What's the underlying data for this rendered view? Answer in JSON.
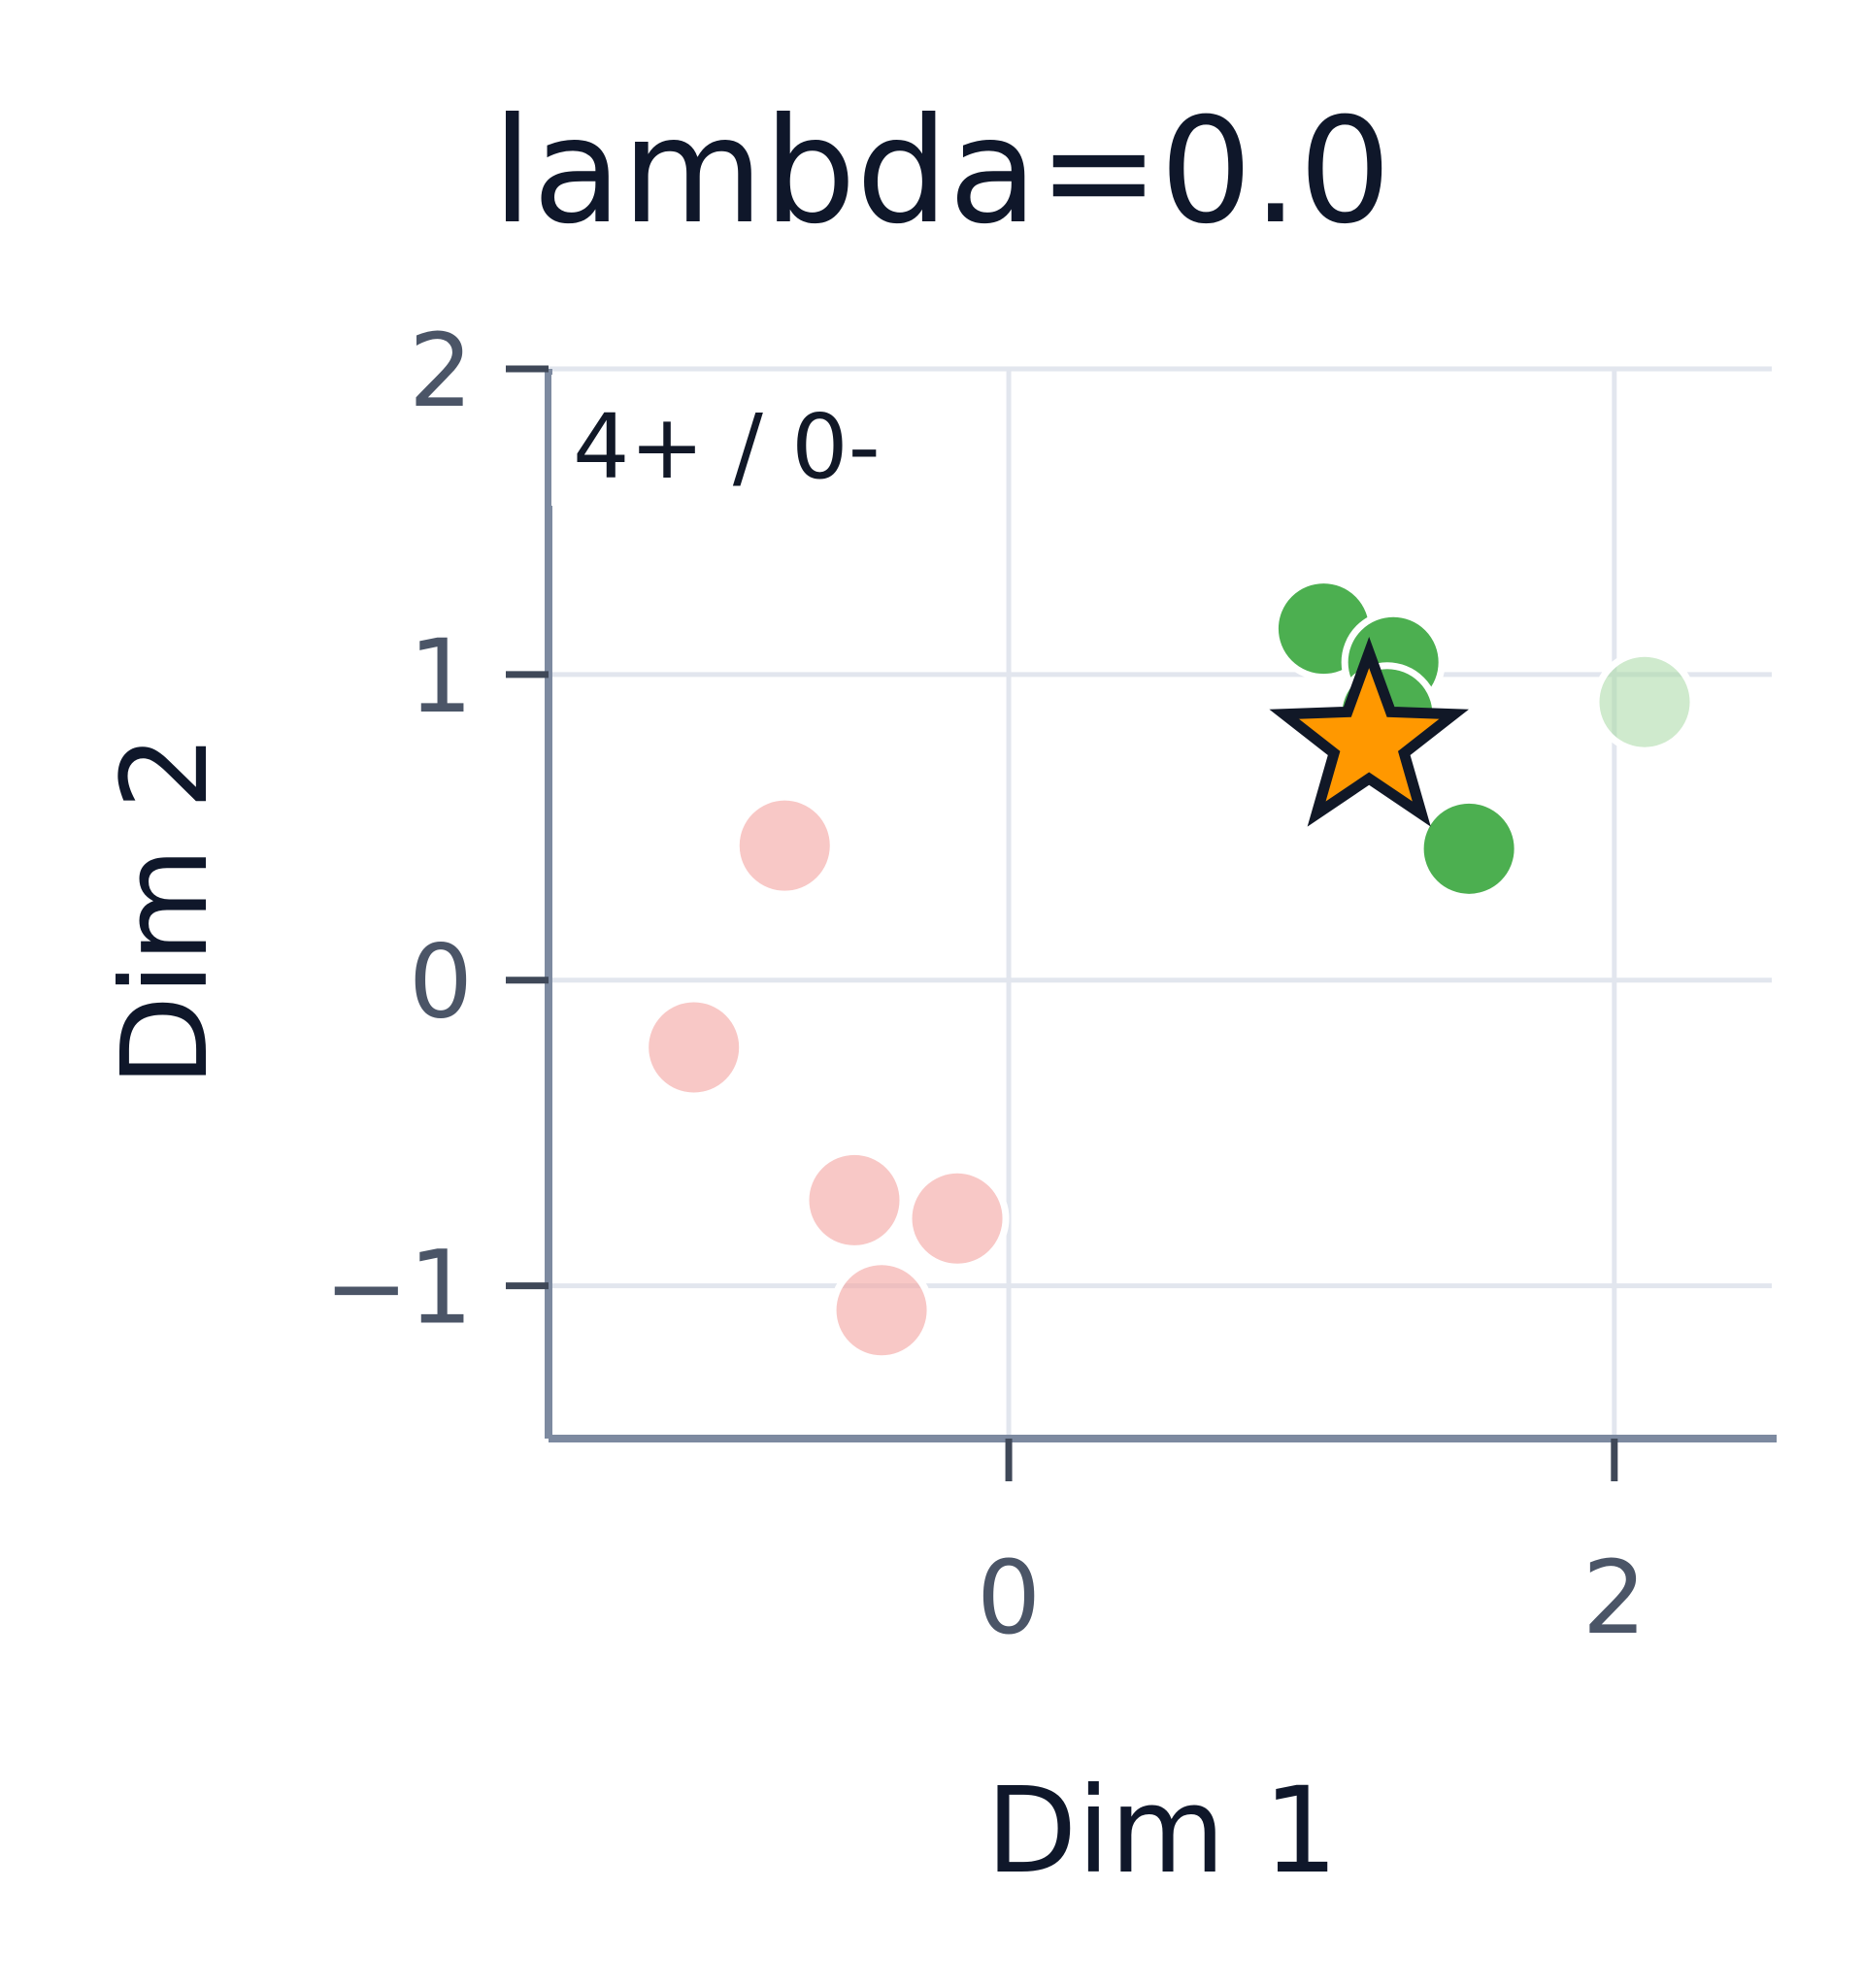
{
  "chart_data": {
    "type": "scatter",
    "title": "lambda=0.0",
    "xlabel": "Dim 1",
    "ylabel": "Dim 2",
    "xlim": [
      -1.52,
      2.52
    ],
    "ylim": [
      -1.5,
      2.0
    ],
    "xticks": [
      0,
      2
    ],
    "yticks": [
      -1,
      0,
      1,
      2
    ],
    "grid": true,
    "annotation": "4+ / 0-",
    "series": [
      {
        "color": "#f4a7a3",
        "opacity": 0.62,
        "points": [
          {
            "x": -0.74,
            "y": 0.44
          },
          {
            "x": -1.04,
            "y": -0.22
          },
          {
            "x": -0.51,
            "y": -0.72
          },
          {
            "x": -0.17,
            "y": -0.78
          },
          {
            "x": -0.42,
            "y": -1.08
          }
        ]
      },
      {
        "color": "#a8d9a4",
        "opacity": 0.55,
        "points": [
          {
            "x": 2.1,
            "y": 0.91
          }
        ]
      },
      {
        "color": "#4caf50",
        "opacity": 1.0,
        "points": [
          {
            "x": 1.04,
            "y": 1.15
          },
          {
            "x": 1.27,
            "y": 1.04
          },
          {
            "x": 1.25,
            "y": 0.87
          },
          {
            "x": 1.52,
            "y": 0.43
          }
        ]
      }
    ],
    "query": {
      "x": 1.19,
      "y": 0.78,
      "marker": "star",
      "color": "#ff9800",
      "edge": "#111827"
    }
  }
}
